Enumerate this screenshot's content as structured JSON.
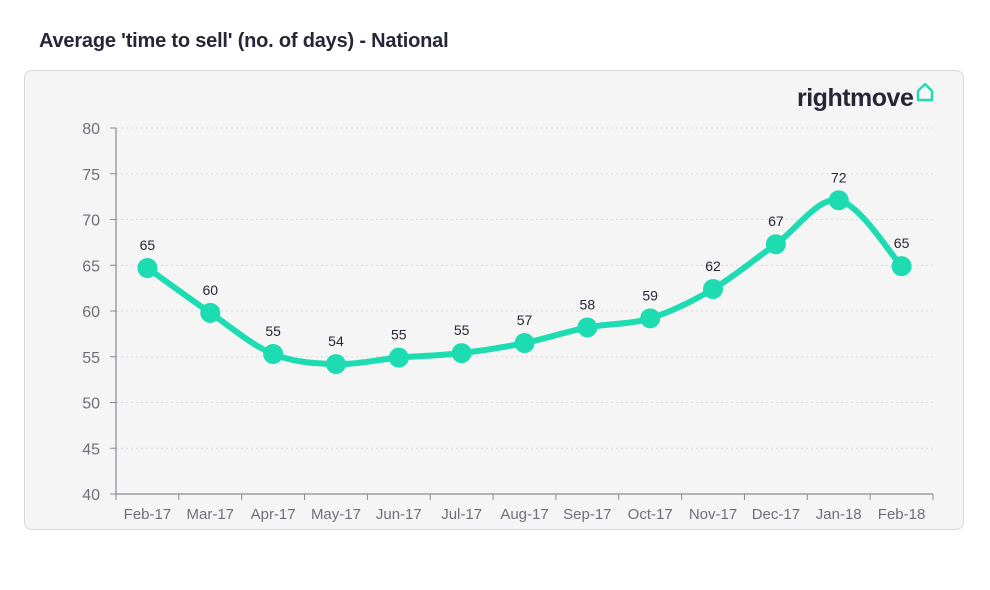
{
  "title": "Average 'time to sell' (no. of days) - National",
  "logo": {
    "text": "rightmove",
    "icon": "house-icon"
  },
  "colors": {
    "line": "#1ddcb2",
    "text": "#262637",
    "axis": "#8a8a94",
    "grid": "#d8d8dc"
  },
  "chart_data": {
    "type": "line",
    "title": "Average 'time to sell' (no. of days) - National",
    "xlabel": "",
    "ylabel": "",
    "ylim": [
      40,
      80
    ],
    "yticks": [
      40,
      45,
      50,
      55,
      60,
      65,
      70,
      75,
      80
    ],
    "grid": true,
    "categories": [
      "Feb-17",
      "Mar-17",
      "Apr-17",
      "May-17",
      "Jun-17",
      "Jul-17",
      "Aug-17",
      "Sep-17",
      "Oct-17",
      "Nov-17",
      "Dec-17",
      "Jan-18",
      "Feb-18"
    ],
    "values": [
      64.7,
      59.8,
      55.3,
      54.2,
      54.9,
      55.4,
      56.5,
      58.2,
      59.2,
      62.4,
      67.3,
      72.1,
      64.9
    ],
    "data_labels": [
      "65",
      "60",
      "55",
      "54",
      "55",
      "55",
      "57",
      "58",
      "59",
      "62",
      "67",
      "72",
      "65"
    ]
  }
}
